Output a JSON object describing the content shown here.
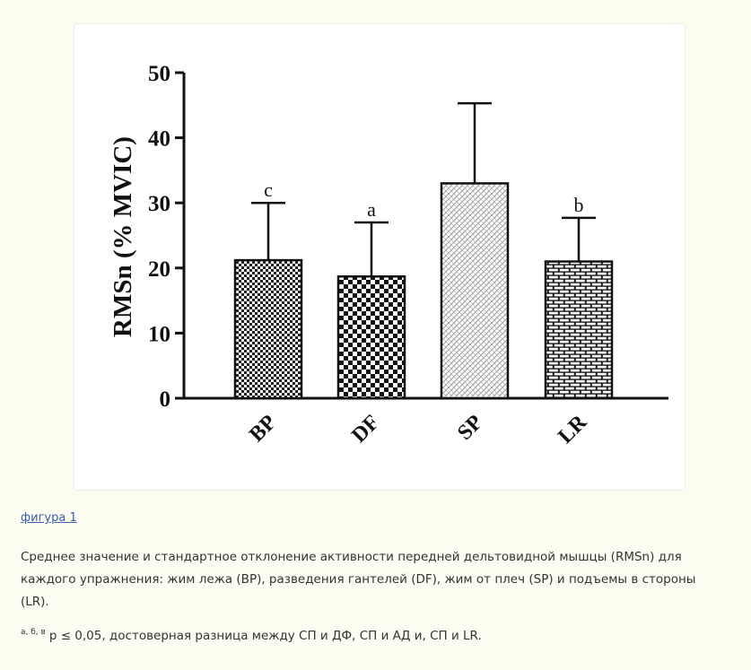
{
  "chart_data": {
    "type": "bar",
    "categories": [
      "BP",
      "DF",
      "SP",
      "LR"
    ],
    "values": [
      21.2,
      18.7,
      33.0,
      21.0
    ],
    "errors": [
      8.8,
      8.3,
      12.3,
      6.7
    ],
    "significance_labels": [
      "c",
      "a",
      "",
      "b"
    ],
    "ylabel": "RMSn (% MVIC)",
    "xlabel": "",
    "ylim": [
      0,
      50
    ],
    "yticks": [
      "0",
      "10",
      "20",
      "30",
      "40",
      "50"
    ],
    "bar_patterns": [
      "checker-fine",
      "checker",
      "crosshatch-light",
      "brick"
    ]
  },
  "figure_link": "фигура 1",
  "caption": "Среднее значение и стандартное отклонение активности передней дельтовидной мышцы (RMSn) для каждого упражнения: жим лежа (BP), разведения гантелей (DF), жим от плеч (SP) и подъемы в стороны (LR).",
  "footnote": {
    "marks": "а, б, в",
    "text": "p ≤ 0,05, достоверная разница между СП и ДФ, СП и АД и, СП и LR."
  }
}
